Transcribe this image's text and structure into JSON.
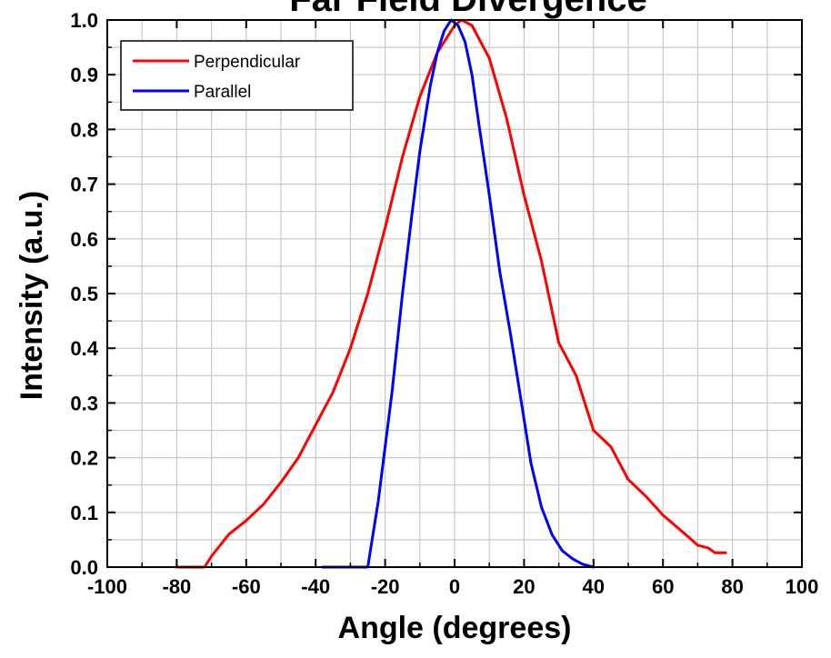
{
  "chart_data": {
    "type": "line",
    "title": "Far Field Divergence",
    "xlabel": "Angle (degrees)",
    "ylabel": "Intensity (a.u.)",
    "xlim": [
      -100,
      100
    ],
    "ylim": [
      0,
      1.0
    ],
    "x_ticks": [
      "-100",
      "-80",
      "-60",
      "-40",
      "-20",
      "0",
      "20",
      "40",
      "60",
      "80",
      "100"
    ],
    "y_ticks": [
      "0.0",
      "0.1",
      "0.2",
      "0.3",
      "0.4",
      "0.5",
      "0.6",
      "0.7",
      "0.8",
      "0.9",
      "1.0"
    ],
    "grid": true,
    "legend_position": "top-left",
    "series": [
      {
        "name": "Perpendicular",
        "color": "#ff0000",
        "x": [
          -80,
          -72,
          -70,
          -65,
          -60,
          -55,
          -50,
          -45,
          -40,
          -35,
          -30,
          -25,
          -20,
          -15,
          -10,
          -5,
          0,
          2,
          5,
          10,
          15,
          20,
          25,
          30,
          35,
          40,
          45,
          50,
          55,
          60,
          65,
          70,
          73,
          75,
          78
        ],
        "y": [
          0.0,
          0.0,
          0.02,
          0.06,
          0.085,
          0.115,
          0.155,
          0.2,
          0.26,
          0.32,
          0.4,
          0.5,
          0.62,
          0.75,
          0.86,
          0.94,
          0.99,
          1.0,
          0.99,
          0.93,
          0.82,
          0.68,
          0.56,
          0.41,
          0.35,
          0.25,
          0.22,
          0.16,
          0.13,
          0.095,
          0.068,
          0.04,
          0.035,
          0.026,
          0.026
        ]
      },
      {
        "name": "Parallel",
        "color": "#0000ff",
        "x": [
          -38,
          -25,
          -22,
          -18,
          -15,
          -12,
          -10,
          -7,
          -5,
          -3,
          -1,
          1,
          3,
          5,
          7,
          10,
          13,
          16,
          19,
          22,
          25,
          28,
          31,
          34,
          37,
          40
        ],
        "y": [
          0.0,
          0.0,
          0.12,
          0.32,
          0.5,
          0.66,
          0.76,
          0.88,
          0.94,
          0.98,
          1.0,
          0.99,
          0.96,
          0.9,
          0.81,
          0.68,
          0.54,
          0.43,
          0.31,
          0.19,
          0.11,
          0.06,
          0.03,
          0.015,
          0.005,
          0.0
        ]
      }
    ]
  }
}
